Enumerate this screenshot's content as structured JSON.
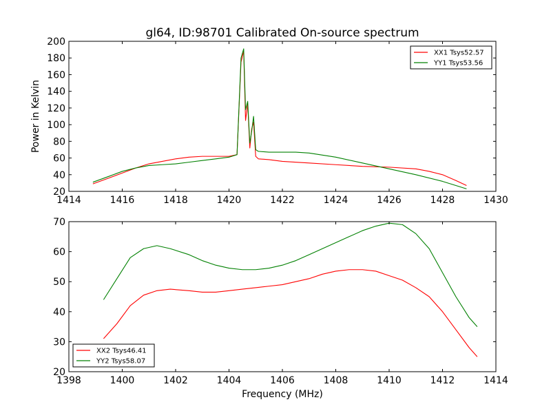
{
  "chart_data": [
    {
      "type": "line",
      "title": "gl64, ID:98701 Calibrated On-source spectrum",
      "xlabel": "",
      "ylabel": "Power in Kelvin",
      "xlim": [
        1414,
        1430
      ],
      "ylim": [
        20,
        200
      ],
      "xticks": [
        1414,
        1416,
        1418,
        1420,
        1422,
        1424,
        1426,
        1428,
        1430
      ],
      "yticks": [
        20,
        40,
        60,
        80,
        100,
        120,
        140,
        160,
        180,
        200
      ],
      "legend_position": "top-right",
      "series": [
        {
          "name": "XX1 Tsys52.57",
          "color": "#ff0000",
          "x": [
            1414.9,
            1415.5,
            1416,
            1416.5,
            1417,
            1417.5,
            1418,
            1418.5,
            1419,
            1419.5,
            1420,
            1420.3,
            1420.45,
            1420.55,
            1420.62,
            1420.7,
            1420.78,
            1420.85,
            1420.92,
            1421,
            1421.1,
            1421.5,
            1422,
            1423,
            1424,
            1425,
            1426,
            1427,
            1427.5,
            1428,
            1428.5,
            1428.9
          ],
          "y": [
            29,
            36,
            42,
            48,
            53,
            56,
            59,
            61,
            62,
            62,
            62,
            64,
            175,
            188,
            105,
            125,
            72,
            95,
            103,
            62,
            59,
            58,
            56,
            54,
            52,
            50,
            49,
            47,
            44,
            40,
            33,
            27
          ]
        },
        {
          "name": "YY1 Tsys53.56",
          "color": "#008000",
          "x": [
            1414.9,
            1415.5,
            1416,
            1416.5,
            1417,
            1417.5,
            1418,
            1418.5,
            1419,
            1419.5,
            1420,
            1420.3,
            1420.45,
            1420.55,
            1420.62,
            1420.7,
            1420.78,
            1420.85,
            1420.92,
            1421,
            1421.1,
            1421.5,
            1422,
            1422.5,
            1423,
            1424,
            1425,
            1426,
            1427,
            1428,
            1428.5,
            1428.9
          ],
          "y": [
            31,
            38,
            44,
            48,
            51,
            52,
            53,
            55,
            57,
            59,
            61,
            64,
            180,
            191,
            118,
            128,
            78,
            92,
            110,
            70,
            68,
            67,
            67,
            67,
            66,
            61,
            54,
            47,
            40,
            32,
            27,
            23
          ]
        }
      ]
    },
    {
      "type": "line",
      "title": "",
      "xlabel": "Frequency (MHz)",
      "ylabel": "",
      "xlim": [
        1398,
        1414
      ],
      "ylim": [
        20,
        70
      ],
      "xticks": [
        1398,
        1400,
        1402,
        1404,
        1406,
        1408,
        1410,
        1412,
        1414
      ],
      "yticks": [
        20,
        30,
        40,
        50,
        60,
        70
      ],
      "legend_position": "bottom-left",
      "series": [
        {
          "name": "XX2 Tsys46.41",
          "color": "#ff0000",
          "x": [
            1399.3,
            1399.8,
            1400.3,
            1400.8,
            1401.3,
            1401.8,
            1402.5,
            1403,
            1403.5,
            1404,
            1404.5,
            1405,
            1405.5,
            1406,
            1406.5,
            1407,
            1407.5,
            1408,
            1408.5,
            1409,
            1409.5,
            1410,
            1410.5,
            1411,
            1411.5,
            1412,
            1412.5,
            1413,
            1413.3
          ],
          "y": [
            31,
            36,
            42,
            45.5,
            47,
            47.5,
            47,
            46.5,
            46.5,
            47,
            47.5,
            48,
            48.5,
            49,
            50,
            51,
            52.5,
            53.5,
            54,
            54,
            53.5,
            52,
            50.5,
            48,
            45,
            40,
            34,
            28,
            25
          ]
        },
        {
          "name": "YY2 Tsys58.07",
          "color": "#008000",
          "x": [
            1399.3,
            1399.8,
            1400.3,
            1400.8,
            1401.3,
            1401.8,
            1402.5,
            1403,
            1403.5,
            1404,
            1404.5,
            1405,
            1405.5,
            1406,
            1406.5,
            1407,
            1407.5,
            1408,
            1408.5,
            1409,
            1409.5,
            1410,
            1410.5,
            1411,
            1411.5,
            1412,
            1412.5,
            1413,
            1413.3
          ],
          "y": [
            44,
            51,
            58,
            61,
            62,
            61,
            59,
            57,
            55.5,
            54.5,
            54,
            54,
            54.5,
            55.5,
            57,
            59,
            61,
            63,
            65,
            67,
            68.5,
            69.5,
            69,
            66,
            61,
            53,
            45,
            38,
            35
          ]
        }
      ]
    }
  ]
}
